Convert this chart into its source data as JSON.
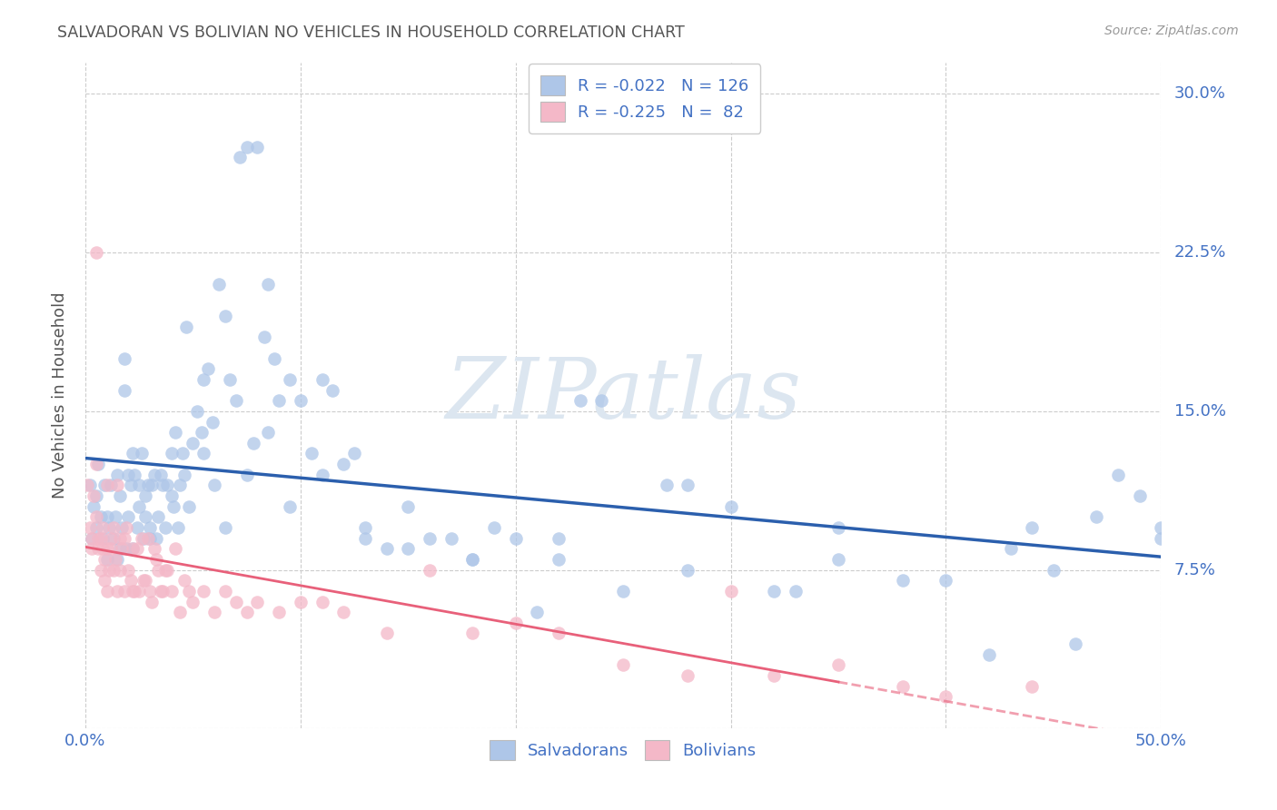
{
  "title": "SALVADORAN VS BOLIVIAN NO VEHICLES IN HOUSEHOLD CORRELATION CHART",
  "source": "Source: ZipAtlas.com",
  "ylabel": "No Vehicles in Household",
  "watermark": "ZIPatlas",
  "xlim": [
    0.0,
    0.5
  ],
  "ylim": [
    0.0,
    0.315
  ],
  "salvador_R": -0.022,
  "salvador_N": 126,
  "bolivian_R": -0.225,
  "bolivian_N": 82,
  "scatter_color_salvador": "#aec6e8",
  "scatter_color_bolivian": "#f4b8c8",
  "line_color_salvador": "#2b5fad",
  "line_color_bolivian": "#e8607a",
  "background_color": "#ffffff",
  "grid_color": "#cccccc",
  "title_color": "#555555",
  "axis_label_color": "#4472c4",
  "legend_text_color": "#4472c4",
  "watermark_color": "#dce6f0",
  "sal_x": [
    0.002,
    0.003,
    0.004,
    0.005,
    0.005,
    0.006,
    0.007,
    0.008,
    0.009,
    0.01,
    0.01,
    0.011,
    0.012,
    0.013,
    0.014,
    0.015,
    0.015,
    0.016,
    0.016,
    0.017,
    0.018,
    0.018,
    0.019,
    0.02,
    0.021,
    0.022,
    0.022,
    0.023,
    0.024,
    0.025,
    0.026,
    0.027,
    0.028,
    0.028,
    0.029,
    0.03,
    0.031,
    0.032,
    0.033,
    0.034,
    0.035,
    0.036,
    0.037,
    0.038,
    0.04,
    0.041,
    0.042,
    0.043,
    0.044,
    0.045,
    0.046,
    0.047,
    0.048,
    0.05,
    0.052,
    0.054,
    0.055,
    0.057,
    0.059,
    0.06,
    0.062,
    0.065,
    0.067,
    0.07,
    0.072,
    0.075,
    0.078,
    0.08,
    0.083,
    0.085,
    0.088,
    0.09,
    0.095,
    0.1,
    0.105,
    0.11,
    0.115,
    0.12,
    0.125,
    0.13,
    0.14,
    0.15,
    0.16,
    0.17,
    0.18,
    0.19,
    0.2,
    0.21,
    0.22,
    0.23,
    0.24,
    0.25,
    0.27,
    0.28,
    0.3,
    0.32,
    0.33,
    0.35,
    0.38,
    0.4,
    0.42,
    0.43,
    0.44,
    0.45,
    0.46,
    0.47,
    0.48,
    0.49,
    0.5,
    0.5,
    0.02,
    0.025,
    0.03,
    0.04,
    0.055,
    0.065,
    0.075,
    0.085,
    0.095,
    0.11,
    0.13,
    0.15,
    0.18,
    0.22,
    0.28,
    0.35
  ],
  "sal_y": [
    0.115,
    0.09,
    0.105,
    0.11,
    0.095,
    0.125,
    0.1,
    0.09,
    0.115,
    0.1,
    0.08,
    0.095,
    0.115,
    0.09,
    0.1,
    0.12,
    0.08,
    0.11,
    0.085,
    0.095,
    0.16,
    0.175,
    0.085,
    0.1,
    0.115,
    0.13,
    0.085,
    0.12,
    0.095,
    0.115,
    0.13,
    0.09,
    0.11,
    0.1,
    0.115,
    0.095,
    0.115,
    0.12,
    0.09,
    0.1,
    0.12,
    0.115,
    0.095,
    0.115,
    0.13,
    0.105,
    0.14,
    0.095,
    0.115,
    0.13,
    0.12,
    0.19,
    0.105,
    0.135,
    0.15,
    0.14,
    0.165,
    0.17,
    0.145,
    0.115,
    0.21,
    0.195,
    0.165,
    0.155,
    0.27,
    0.275,
    0.135,
    0.275,
    0.185,
    0.21,
    0.175,
    0.155,
    0.165,
    0.155,
    0.13,
    0.165,
    0.16,
    0.125,
    0.13,
    0.09,
    0.085,
    0.085,
    0.09,
    0.09,
    0.08,
    0.095,
    0.09,
    0.055,
    0.08,
    0.155,
    0.155,
    0.065,
    0.115,
    0.115,
    0.105,
    0.065,
    0.065,
    0.08,
    0.07,
    0.07,
    0.035,
    0.085,
    0.095,
    0.075,
    0.04,
    0.1,
    0.12,
    0.11,
    0.09,
    0.095,
    0.12,
    0.105,
    0.09,
    0.11,
    0.13,
    0.095,
    0.12,
    0.14,
    0.105,
    0.12,
    0.095,
    0.105,
    0.08,
    0.09,
    0.075,
    0.095
  ],
  "bol_x": [
    0.001,
    0.002,
    0.003,
    0.003,
    0.004,
    0.005,
    0.005,
    0.006,
    0.006,
    0.007,
    0.007,
    0.008,
    0.008,
    0.009,
    0.009,
    0.01,
    0.01,
    0.011,
    0.012,
    0.012,
    0.013,
    0.013,
    0.014,
    0.015,
    0.015,
    0.016,
    0.016,
    0.017,
    0.018,
    0.018,
    0.019,
    0.02,
    0.021,
    0.022,
    0.022,
    0.023,
    0.024,
    0.025,
    0.026,
    0.027,
    0.028,
    0.029,
    0.03,
    0.031,
    0.032,
    0.033,
    0.034,
    0.035,
    0.036,
    0.037,
    0.038,
    0.04,
    0.042,
    0.044,
    0.046,
    0.048,
    0.05,
    0.055,
    0.06,
    0.065,
    0.07,
    0.075,
    0.08,
    0.09,
    0.1,
    0.11,
    0.12,
    0.14,
    0.16,
    0.18,
    0.2,
    0.22,
    0.25,
    0.28,
    0.3,
    0.32,
    0.35,
    0.38,
    0.4,
    0.44,
    0.005,
    0.01
  ],
  "bol_y": [
    0.115,
    0.095,
    0.09,
    0.085,
    0.11,
    0.125,
    0.1,
    0.09,
    0.085,
    0.075,
    0.09,
    0.085,
    0.095,
    0.08,
    0.07,
    0.085,
    0.115,
    0.075,
    0.09,
    0.085,
    0.095,
    0.075,
    0.08,
    0.065,
    0.115,
    0.075,
    0.09,
    0.085,
    0.065,
    0.09,
    0.095,
    0.075,
    0.07,
    0.065,
    0.085,
    0.065,
    0.085,
    0.065,
    0.09,
    0.07,
    0.07,
    0.09,
    0.065,
    0.06,
    0.085,
    0.08,
    0.075,
    0.065,
    0.065,
    0.075,
    0.075,
    0.065,
    0.085,
    0.055,
    0.07,
    0.065,
    0.06,
    0.065,
    0.055,
    0.065,
    0.06,
    0.055,
    0.06,
    0.055,
    0.06,
    0.06,
    0.055,
    0.045,
    0.075,
    0.045,
    0.05,
    0.045,
    0.03,
    0.025,
    0.065,
    0.025,
    0.03,
    0.02,
    0.015,
    0.02,
    0.225,
    0.065
  ]
}
